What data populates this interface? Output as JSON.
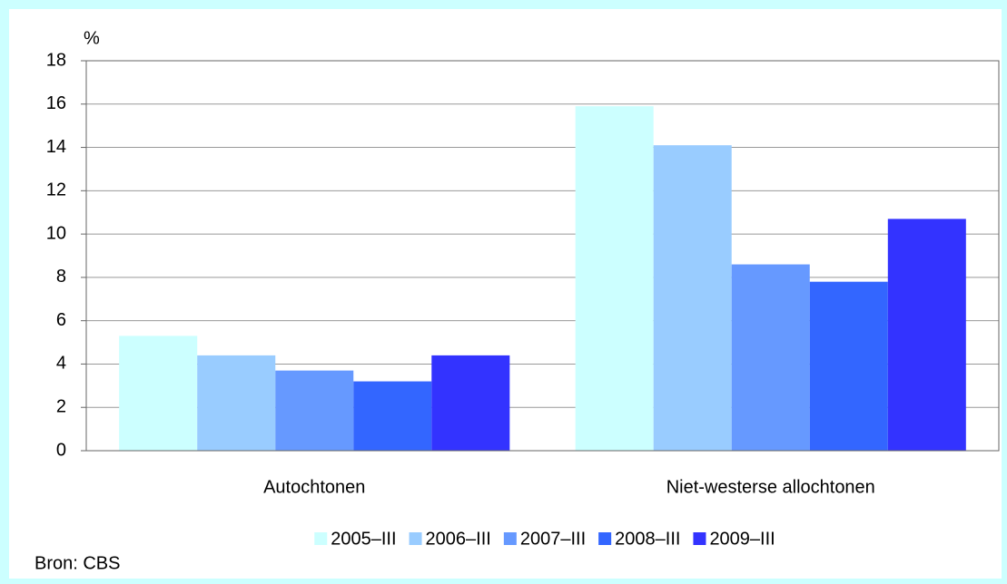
{
  "chart_data": {
    "type": "bar",
    "ylabel": "%",
    "source": "Bron: CBS",
    "categories": [
      "Autochtonen",
      "Niet-westerse allochtonen"
    ],
    "series": [
      {
        "name": "2005–III",
        "color": "#ccffff",
        "values": [
          5.3,
          15.9
        ]
      },
      {
        "name": "2006–III",
        "color": "#99ccff",
        "values": [
          4.4,
          14.1
        ]
      },
      {
        "name": "2007–III",
        "color": "#6699ff",
        "values": [
          3.7,
          8.6
        ]
      },
      {
        "name": "2008–III",
        "color": "#3366ff",
        "values": [
          3.2,
          7.8
        ]
      },
      {
        "name": "2009–III",
        "color": "#3333ff",
        "values": [
          4.4,
          10.7
        ]
      }
    ],
    "ylim": [
      0,
      18
    ],
    "yticks": [
      0,
      2,
      4,
      6,
      8,
      10,
      12,
      14,
      16,
      18
    ],
    "grid": true,
    "legend": "bottom"
  }
}
